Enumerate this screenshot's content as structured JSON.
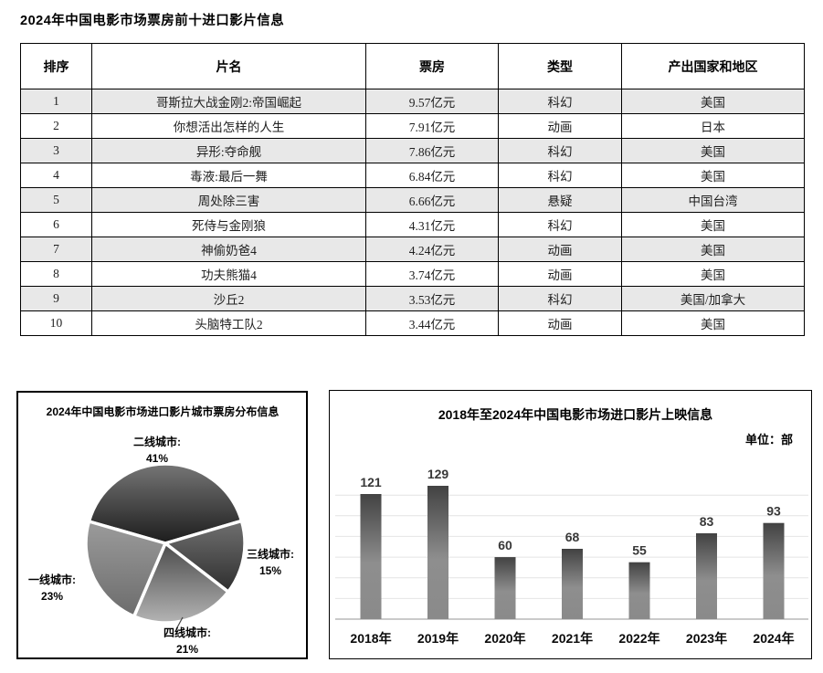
{
  "title": "2024年中国电影市场票房前十进口影片信息",
  "table": {
    "headers": [
      "排序",
      "片名",
      "票房",
      "类型",
      "产出国家和地区"
    ],
    "rows": [
      [
        "1",
        "哥斯拉大战金刚2:帝国崛起",
        "9.57亿元",
        "科幻",
        "美国"
      ],
      [
        "2",
        "你想活出怎样的人生",
        "7.91亿元",
        "动画",
        "日本"
      ],
      [
        "3",
        "异形:夺命舰",
        "7.86亿元",
        "科幻",
        "美国"
      ],
      [
        "4",
        "毒液:最后一舞",
        "6.84亿元",
        "科幻",
        "美国"
      ],
      [
        "5",
        "周处除三害",
        "6.66亿元",
        "悬疑",
        "中国台湾"
      ],
      [
        "6",
        "死侍与金刚狼",
        "4.31亿元",
        "科幻",
        "美国"
      ],
      [
        "7",
        "神偷奶爸4",
        "4.24亿元",
        "动画",
        "美国"
      ],
      [
        "8",
        "功夫熊猫4",
        "3.74亿元",
        "动画",
        "美国"
      ],
      [
        "9",
        "沙丘2",
        "3.53亿元",
        "科幻",
        "美国/加拿大"
      ],
      [
        "10",
        "头脑特工队2",
        "3.44亿元",
        "动画",
        "美国"
      ]
    ]
  },
  "chart_data": [
    {
      "type": "pie",
      "title": "2024年中国电影市场进口影片城市票房分布信息",
      "labels": [
        "二线城市",
        "三线城市",
        "四线城市",
        "一线城市"
      ],
      "values": [
        41,
        15,
        21,
        23
      ],
      "unit": "%",
      "start_angle_deg": 164,
      "direction": "clockwise",
      "slice_gradients": [
        [
          "#767676",
          "#1c1c1c"
        ],
        [
          "#707070",
          "#2e2e2e"
        ],
        [
          "#4b4b4b",
          "#b4b4b4"
        ],
        [
          "#9b9b9b",
          "#6c6c6c"
        ]
      ],
      "gap_color": "#ffffff"
    },
    {
      "type": "bar",
      "title": "2018年至2024年中国电影市场进口影片上映信息",
      "unit_label": "单位：部",
      "categories": [
        "2018年",
        "2019年",
        "2020年",
        "2021年",
        "2022年",
        "2023年",
        "2024年"
      ],
      "values": [
        121,
        129,
        60,
        68,
        55,
        83,
        93
      ],
      "ylim": [
        0,
        140
      ],
      "gridline_values": [
        20,
        40,
        60,
        80,
        100,
        120
      ],
      "legend": "none",
      "bar_color_top": "#424242",
      "bar_color_bottom": "#8e8e8e",
      "gridline_color": "#e4e4e4",
      "axis_color": "#aaaaaa"
    }
  ]
}
